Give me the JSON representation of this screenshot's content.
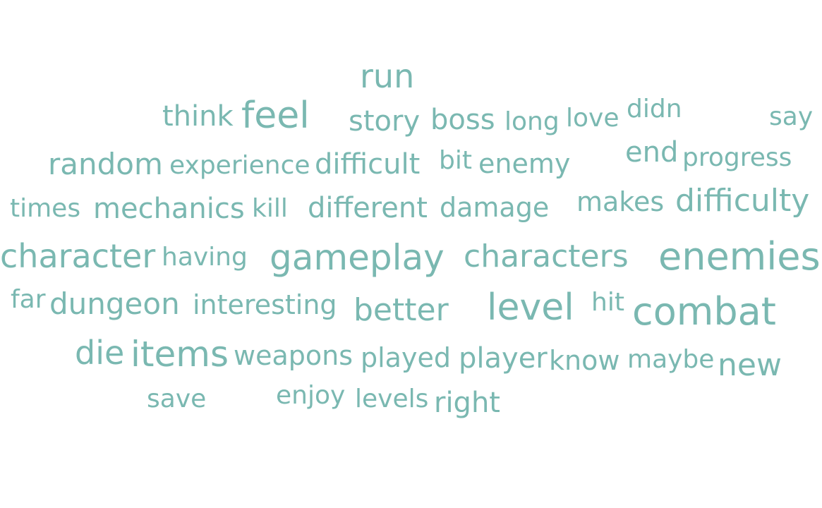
{
  "word_cloud": {
    "color": "#7ab8b1",
    "words": [
      {
        "text": "run",
        "size": 46
      },
      {
        "text": "think",
        "size": 40
      },
      {
        "text": "feel",
        "size": 52
      },
      {
        "text": "story",
        "size": 40
      },
      {
        "text": "boss",
        "size": 40
      },
      {
        "text": "long",
        "size": 36
      },
      {
        "text": "love",
        "size": 36
      },
      {
        "text": "didn",
        "size": 36
      },
      {
        "text": "say",
        "size": 36
      },
      {
        "text": "random",
        "size": 42
      },
      {
        "text": "experience",
        "size": 36
      },
      {
        "text": "difficult",
        "size": 40
      },
      {
        "text": "bit",
        "size": 36
      },
      {
        "text": "enemy",
        "size": 38
      },
      {
        "text": "end",
        "size": 40
      },
      {
        "text": "progress",
        "size": 36
      },
      {
        "text": "times",
        "size": 36
      },
      {
        "text": "mechanics",
        "size": 40
      },
      {
        "text": "kill",
        "size": 36
      },
      {
        "text": "different",
        "size": 40
      },
      {
        "text": "damage",
        "size": 38
      },
      {
        "text": "makes",
        "size": 38
      },
      {
        "text": "difficulty",
        "size": 44
      },
      {
        "text": "character",
        "size": 46
      },
      {
        "text": "having",
        "size": 36
      },
      {
        "text": "gameplay",
        "size": 50
      },
      {
        "text": "characters",
        "size": 44
      },
      {
        "text": "enemies",
        "size": 54
      },
      {
        "text": "far",
        "size": 36
      },
      {
        "text": "dungeon",
        "size": 42
      },
      {
        "text": "interesting",
        "size": 38
      },
      {
        "text": "better",
        "size": 44
      },
      {
        "text": "level",
        "size": 52
      },
      {
        "text": "hit",
        "size": 36
      },
      {
        "text": "combat",
        "size": 54
      },
      {
        "text": "die",
        "size": 46
      },
      {
        "text": "items",
        "size": 50
      },
      {
        "text": "weapons",
        "size": 38
      },
      {
        "text": "played",
        "size": 38
      },
      {
        "text": "player",
        "size": 40
      },
      {
        "text": "know",
        "size": 38
      },
      {
        "text": "maybe",
        "size": 36
      },
      {
        "text": "new",
        "size": 44
      },
      {
        "text": "save",
        "size": 36
      },
      {
        "text": "enjoy",
        "size": 36
      },
      {
        "text": "levels",
        "size": 36
      },
      {
        "text": "right",
        "size": 40
      }
    ]
  }
}
